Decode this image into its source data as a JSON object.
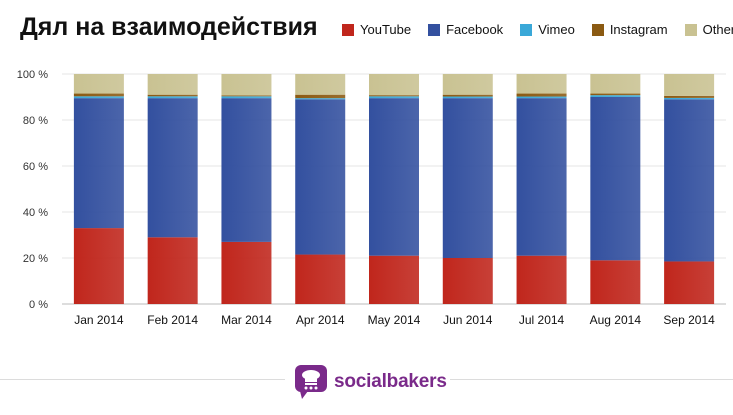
{
  "title": "Дял на взаимодействия",
  "brand": {
    "name": "socialbakers",
    "icon": "chef-hat-speech-bubble-icon"
  },
  "chart_data": {
    "type": "bar",
    "stacked": true,
    "normalized": true,
    "categories": [
      "Jan 2014",
      "Feb 2014",
      "Mar 2014",
      "Apr 2014",
      "May 2014",
      "Jun 2014",
      "Jul 2014",
      "Aug 2014",
      "Sep 2014"
    ],
    "ylim": [
      0,
      100
    ],
    "yticks": [
      0,
      20,
      40,
      60,
      80,
      100
    ],
    "ytick_labels": [
      "0 %",
      "20 %",
      "40 %",
      "60 %",
      "80 %",
      "100 %"
    ],
    "grid": true,
    "legend_position": "top-right",
    "series": [
      {
        "name": "YouTube",
        "color": "#c0261c",
        "values": [
          33,
          29,
          27,
          21.5,
          21,
          20,
          21,
          19,
          18.5
        ]
      },
      {
        "name": "Facebook",
        "color": "#33509f",
        "values": [
          56.5,
          60.5,
          62.5,
          67.5,
          68.5,
          69.5,
          68.5,
          71,
          70.5
        ]
      },
      {
        "name": "Vimeo",
        "color": "#3aa8d8",
        "values": [
          0.8,
          0.8,
          0.8,
          0.5,
          0.8,
          0.7,
          0.7,
          0.8,
          0.6
        ]
      },
      {
        "name": "Instagram",
        "color": "#8b5a12",
        "values": [
          1.2,
          0.7,
          0.4,
          1.5,
          0.5,
          0.8,
          1.3,
          0.7,
          0.9
        ]
      },
      {
        "name": "Others",
        "color": "#c9c292",
        "values": [
          8.5,
          9.0,
          9.3,
          9.0,
          9.2,
          9.0,
          8.5,
          8.5,
          9.5
        ]
      }
    ]
  }
}
